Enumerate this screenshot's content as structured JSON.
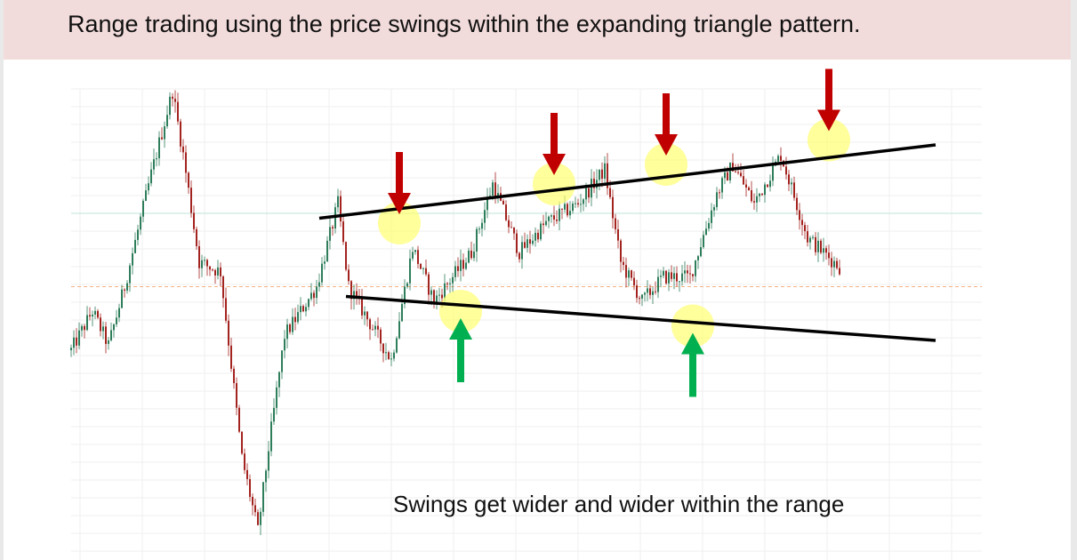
{
  "slide": {
    "title": "Range trading using the price swings within the expanding triangle pattern."
  },
  "annotation": "Swings get wider and wider within the range",
  "colors": {
    "title_background": "#f2dcdb",
    "down_arrow": "#c00000",
    "up_arrow": "#00b050",
    "highlight": "#ffff66",
    "candle_up": "#2e7d5b",
    "candle_down": "#a3231f",
    "trendline": "#000000",
    "reference_solid": "#bfe3da",
    "reference_dashed": "#f4b183",
    "grid": "#efefef"
  },
  "chart_data": {
    "type": "candlestick",
    "title": "",
    "xlabel": "",
    "ylabel": "",
    "grid": true,
    "ylim": [
      0,
      100
    ],
    "n_candles": 320,
    "price_path_anchors": [
      [
        0,
        42
      ],
      [
        8,
        50
      ],
      [
        14,
        43
      ],
      [
        20,
        55
      ],
      [
        30,
        78
      ],
      [
        38,
        95
      ],
      [
        42,
        82
      ],
      [
        48,
        60
      ],
      [
        56,
        58
      ],
      [
        64,
        20
      ],
      [
        70,
        5
      ],
      [
        74,
        22
      ],
      [
        80,
        45
      ],
      [
        92,
        55
      ],
      [
        100,
        72
      ],
      [
        104,
        55
      ],
      [
        120,
        40
      ],
      [
        128,
        63
      ],
      [
        136,
        52
      ],
      [
        150,
        62
      ],
      [
        158,
        76
      ],
      [
        168,
        62
      ],
      [
        178,
        68
      ],
      [
        190,
        72
      ],
      [
        200,
        79
      ],
      [
        206,
        60
      ],
      [
        214,
        52
      ],
      [
        222,
        57
      ],
      [
        232,
        57
      ],
      [
        242,
        74
      ],
      [
        248,
        80
      ],
      [
        256,
        72
      ],
      [
        266,
        82
      ],
      [
        276,
        65
      ],
      [
        288,
        59
      ]
    ],
    "trendlines": [
      {
        "name": "upper",
        "start": [
          93,
          69
        ],
        "end": [
          324,
          84
        ]
      },
      {
        "name": "lower",
        "start": [
          103,
          53
        ],
        "end": [
          324,
          44
        ]
      }
    ],
    "reference_lines": [
      {
        "style": "solid",
        "y": 70
      },
      {
        "style": "dashed",
        "y": 55
      }
    ],
    "swing_highlights": [
      {
        "candle": 123,
        "y": 68,
        "signal": "sell"
      },
      {
        "candle": 181,
        "y": 76,
        "signal": "sell"
      },
      {
        "candle": 223,
        "y": 80,
        "signal": "sell"
      },
      {
        "candle": 284,
        "y": 85,
        "signal": "sell"
      },
      {
        "candle": 146,
        "y": 50,
        "signal": "buy"
      },
      {
        "candle": 233,
        "y": 47,
        "signal": "buy"
      }
    ]
  }
}
